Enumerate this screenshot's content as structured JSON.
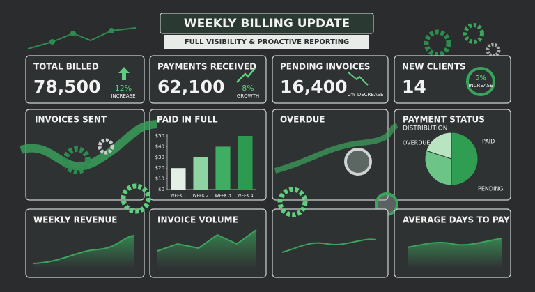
{
  "header": {
    "title": "WEEKLY BILLING UPDATE",
    "subtitle": "FULL VISIBILITY & PROACTIVE REPORTING"
  },
  "kpis": [
    {
      "title": "TOTAL BILLED",
      "value": "78,500",
      "change": "12%",
      "change_label": "INCREASE"
    },
    {
      "title": "PAYMENTS RECEIVED",
      "value": "62,100",
      "change": "8%",
      "change_label": "GROWTH"
    },
    {
      "title": "PENDING INVOICES",
      "value": "16,400",
      "change": "2% DECREASE"
    },
    {
      "title": "NEW CLIENTS",
      "value": "14",
      "change": "5%",
      "change_label": "INCREASE"
    }
  ],
  "panels": {
    "invoices_sent": {
      "title": "INVOICES SENT"
    },
    "paid_in_full": {
      "title": "PAID IN FULL",
      "chart": {
        "type": "bar",
        "categories": [
          "WEEK 1",
          "WEEK 2",
          "WEEK 3",
          "WEEK 4"
        ],
        "values": [
          20,
          30,
          40,
          50
        ],
        "colors": [
          "#e4efe6",
          "#8fd3a2",
          "#3fae62",
          "#2e9a50"
        ],
        "ylim": [
          0,
          50
        ],
        "yticks": [
          {
            "value": 0,
            "label": "$0"
          },
          {
            "value": 10,
            "label": "$10"
          },
          {
            "value": 20,
            "label": "$20"
          },
          {
            "value": 30,
            "label": "$30"
          },
          {
            "value": 40,
            "label": "$40"
          },
          {
            "value": 50,
            "label": "$50"
          }
        ]
      }
    },
    "overdue": {
      "title": "OVERDUE"
    },
    "payment_status": {
      "title": "PAYMENT STATUS",
      "subtitle": "DISTRIBUTION",
      "chart": {
        "type": "pie",
        "labels": [
          "OVERDUE",
          "PAID",
          "PENDING"
        ],
        "values": [
          20,
          50,
          30
        ],
        "colors": [
          "#b9e4c2",
          "#2f9e52",
          "#6cc486"
        ]
      }
    },
    "weekly_revenue": {
      "title": "WEEKLY REVENUE"
    },
    "invoice_volume": {
      "title": "INVOICE VOLUME"
    },
    "average_days": {
      "title": "AVERAGE DAYS TO PAY"
    }
  }
}
